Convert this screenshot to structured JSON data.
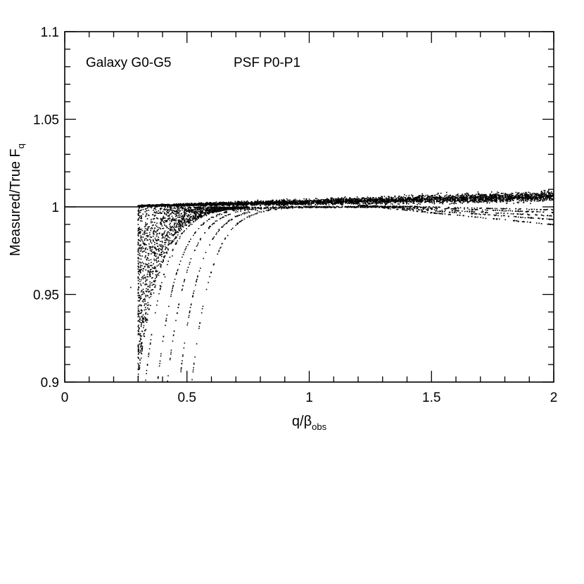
{
  "chart_data": {
    "type": "scatter",
    "xlim": [
      0,
      2
    ],
    "ylim": [
      0.9,
      1.1
    ],
    "x_ticks": [
      {
        "value": 0,
        "label": "0"
      },
      {
        "value": 0.5,
        "label": "0.5"
      },
      {
        "value": 1,
        "label": "1"
      },
      {
        "value": 1.5,
        "label": "1.5"
      },
      {
        "value": 2,
        "label": "2"
      }
    ],
    "y_ticks": [
      {
        "value": 0.9,
        "label": "0.9"
      },
      {
        "value": 0.95,
        "label": "0.95"
      },
      {
        "value": 1.0,
        "label": "1"
      },
      {
        "value": 1.05,
        "label": "1.05"
      },
      {
        "value": 1.1,
        "label": "1.1"
      }
    ],
    "x_minor_step": 0.1,
    "y_minor_step": 0.01,
    "xlabel": {
      "main": "q/β",
      "sub": "obs"
    },
    "ylabel": {
      "main": "Measured/True F",
      "sub": "q"
    },
    "annotations": [
      {
        "text": "Galaxy G0-G5",
        "anchor": "top-left"
      },
      {
        "text": "PSF P0-P1",
        "anchor": "top-left"
      }
    ],
    "reference_line": {
      "y": 1.0,
      "x_from": 0,
      "x_to": 0.3
    },
    "grid": false,
    "legend": "none",
    "point_color": "#000000",
    "points": [
      [
        0.31,
        0.992
      ],
      [
        0.33,
        0.985
      ],
      [
        0.35,
        0.975
      ],
      [
        0.37,
        0.965
      ],
      [
        0.39,
        0.955
      ],
      [
        0.41,
        0.96
      ],
      [
        0.44,
        0.972
      ],
      [
        0.47,
        0.982
      ],
      [
        0.52,
        0.99
      ],
      [
        0.58,
        0.995
      ],
      [
        0.65,
        0.998
      ],
      [
        0.75,
        1.0
      ],
      [
        0.9,
        1.001
      ],
      [
        1.0,
        1.001
      ],
      [
        1.2,
        1.002
      ],
      [
        1.5,
        1.004
      ],
      [
        1.8,
        1.007
      ],
      [
        2.0,
        1.009
      ]
    ]
  }
}
